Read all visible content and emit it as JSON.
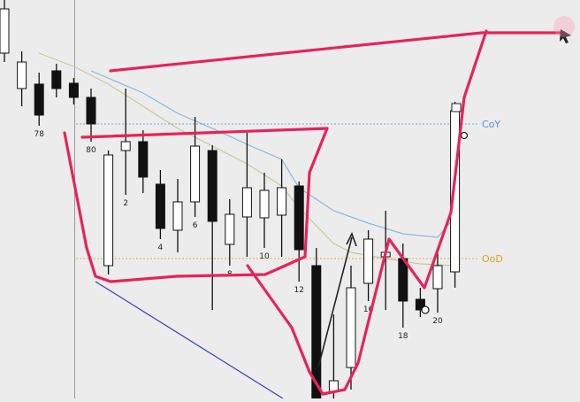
{
  "chart_data": {
    "type": "candlestick",
    "title": "",
    "xlabel": "",
    "ylabel": "",
    "ylim": [
      0,
      450
    ],
    "grid": false,
    "bar_labels": [
      {
        "x": 2,
        "text": "78"
      },
      {
        "x": 5,
        "text": "80"
      },
      {
        "x": 7,
        "text": "2"
      },
      {
        "x": 9,
        "text": "4"
      },
      {
        "x": 11,
        "text": "6"
      },
      {
        "x": 13,
        "text": "8"
      },
      {
        "x": 15,
        "text": "10"
      },
      {
        "x": 17,
        "text": "12"
      },
      {
        "x": 21,
        "text": "16"
      },
      {
        "x": 23,
        "text": "18"
      },
      {
        "x": 25,
        "text": "20"
      }
    ],
    "levels": [
      {
        "name": "CoY",
        "value": 310,
        "color": "#5d8fd6"
      },
      {
        "name": "OoD",
        "value": 158,
        "color": "#e0a020"
      }
    ],
    "candles": [
      {
        "x": 0,
        "open": 390,
        "close": 440,
        "high": 450,
        "low": 380
      },
      {
        "x": 1,
        "open": 350,
        "close": 380,
        "high": 392,
        "low": 330
      },
      {
        "x": 2,
        "open": 355,
        "close": 320,
        "high": 368,
        "low": 308
      },
      {
        "x": 3,
        "open": 370,
        "close": 350,
        "high": 378,
        "low": 340
      },
      {
        "x": 4,
        "open": 356,
        "close": 340,
        "high": 362,
        "low": 332
      },
      {
        "x": 5,
        "open": 340,
        "close": 310,
        "high": 350,
        "low": 290
      },
      {
        "x": 6,
        "open": 150,
        "close": 275,
        "high": 280,
        "low": 140
      },
      {
        "x": 7,
        "open": 280,
        "close": 290,
        "high": 350,
        "low": 230
      },
      {
        "x": 8,
        "open": 290,
        "close": 250,
        "high": 303,
        "low": 232
      },
      {
        "x": 9,
        "open": 242,
        "close": 192,
        "high": 258,
        "low": 180
      },
      {
        "x": 10,
        "open": 190,
        "close": 222,
        "high": 248,
        "low": 165
      },
      {
        "x": 11,
        "open": 222,
        "close": 285,
        "high": 318,
        "low": 205
      },
      {
        "x": 12,
        "open": 280,
        "close": 200,
        "high": 286,
        "low": 100
      },
      {
        "x": 13,
        "open": 174,
        "close": 208,
        "high": 225,
        "low": 150
      },
      {
        "x": 14,
        "open": 205,
        "close": 238,
        "high": 300,
        "low": 160
      },
      {
        "x": 15,
        "open": 204,
        "close": 235,
        "high": 255,
        "low": 170
      },
      {
        "x": 16,
        "open": 207,
        "close": 238,
        "high": 270,
        "low": 160
      },
      {
        "x": 17,
        "open": 240,
        "close": 168,
        "high": 245,
        "low": 132
      },
      {
        "x": 18,
        "open": 150,
        "close": 0,
        "high": 170,
        "low": 0
      },
      {
        "x": 19,
        "open": 8,
        "close": 20,
        "high": 95,
        "low": 0
      },
      {
        "x": 20,
        "open": 35,
        "close": 125,
        "high": 150,
        "low": 10
      },
      {
        "x": 21,
        "open": 130,
        "close": 180,
        "high": 190,
        "low": 110
      },
      {
        "x": 22,
        "open": 160,
        "close": 165,
        "high": 212,
        "low": 100
      },
      {
        "x": 23,
        "open": 158,
        "close": 110,
        "high": 175,
        "low": 80
      },
      {
        "x": 24,
        "open": 112,
        "close": 100,
        "high": 125,
        "low": 92
      },
      {
        "x": 25,
        "open": 124,
        "close": 150,
        "high": 170,
        "low": 97
      },
      {
        "x": 26,
        "open": 143,
        "close": 325,
        "high": 335,
        "low": 125
      }
    ],
    "series": [
      {
        "type": "line",
        "color": "#88b8dc",
        "points": [
          [
            5,
            370
          ],
          [
            8,
            345
          ],
          [
            10,
            322
          ],
          [
            12,
            305
          ],
          [
            14,
            287
          ],
          [
            16,
            270
          ],
          [
            17,
            238
          ],
          [
            19,
            212
          ],
          [
            21,
            198
          ],
          [
            23,
            186
          ],
          [
            25,
            182
          ],
          [
            26,
            205
          ]
        ]
      },
      {
        "type": "line",
        "color": "#c8c89a",
        "points": [
          [
            2,
            390
          ],
          [
            4,
            375
          ],
          [
            6,
            355
          ],
          [
            8,
            330
          ],
          [
            10,
            305
          ],
          [
            12,
            285
          ],
          [
            14,
            265
          ],
          [
            16,
            240
          ],
          [
            17,
            215
          ],
          [
            19,
            175
          ],
          [
            20,
            165
          ],
          [
            22,
            158
          ],
          [
            24,
            152
          ],
          [
            26,
            150
          ]
        ]
      }
    ]
  },
  "annotations": {
    "marker_color": "#e6235a",
    "trend_line_color": "#3a3ac0"
  }
}
